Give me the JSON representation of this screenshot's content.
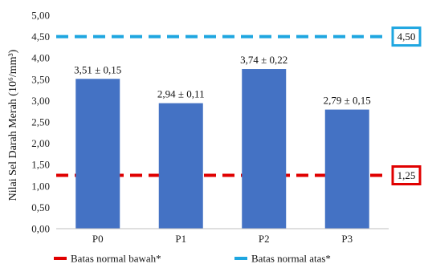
{
  "chart_data": {
    "type": "bar",
    "title": "",
    "xlabel": "",
    "ylabel": "Nilai Sel Darah Merah (10⁶/mm³)",
    "categories": [
      "P0",
      "P1",
      "P2",
      "P3"
    ],
    "values": [
      3.51,
      2.94,
      3.74,
      2.79
    ],
    "errors": [
      0.15,
      0.11,
      0.22,
      0.15
    ],
    "data_labels": [
      "3,51 ± 0,15",
      "2,94 ± 0,11",
      "3,74 ± 0,22",
      "2,79 ± 0,15"
    ],
    "ylim": [
      0,
      5
    ],
    "yticks": [
      "0,00",
      "0,50",
      "1,00",
      "1,50",
      "2,00",
      "2,50",
      "3,00",
      "3,50",
      "4,00",
      "4,50",
      "5,00"
    ],
    "grid": false,
    "bar_color": "#4472C4",
    "reference_lines": [
      {
        "name": "Batas normal bawah*",
        "value": 1.25,
        "label": "1,25",
        "color": "#E00000"
      },
      {
        "name": "Batas normal atas*",
        "value": 4.5,
        "label": "4,50",
        "color": "#1EA6E0"
      }
    ],
    "legend_placement": "bottom"
  }
}
